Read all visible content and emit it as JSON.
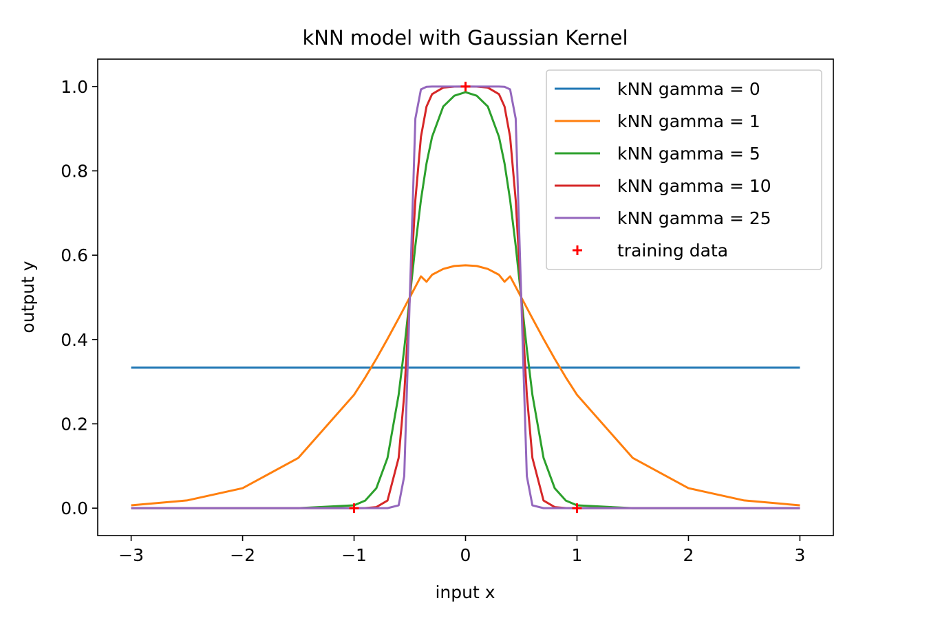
{
  "chart_data": {
    "type": "line",
    "title": "kNN model with Gaussian Kernel",
    "xlabel": "input x",
    "ylabel": "output y",
    "xlim": [
      -3.3,
      3.3
    ],
    "ylim": [
      -0.065,
      1.065
    ],
    "grid": false,
    "legend_position": "top-right",
    "xticks": [
      {
        "value": -3,
        "label": "−3"
      },
      {
        "value": -2,
        "label": "−2"
      },
      {
        "value": -1,
        "label": "−1"
      },
      {
        "value": 0,
        "label": "0"
      },
      {
        "value": 1,
        "label": "1"
      },
      {
        "value": 2,
        "label": "2"
      },
      {
        "value": 3,
        "label": "3"
      }
    ],
    "yticks": [
      {
        "value": 0.0,
        "label": "0.0"
      },
      {
        "value": 0.2,
        "label": "0.2"
      },
      {
        "value": 0.4,
        "label": "0.4"
      },
      {
        "value": 0.6,
        "label": "0.6"
      },
      {
        "value": 0.8,
        "label": "0.8"
      },
      {
        "value": 1.0,
        "label": "1.0"
      }
    ],
    "x": [
      -3.0,
      -2.5,
      -2.0,
      -1.5,
      -1.0,
      -0.9,
      -0.8,
      -0.7,
      -0.6,
      -0.55,
      -0.5,
      -0.45,
      -0.4,
      -0.35,
      -0.3,
      -0.2,
      -0.1,
      0.0,
      0.1,
      0.2,
      0.3,
      0.35,
      0.4,
      0.45,
      0.5,
      0.55,
      0.6,
      0.7,
      0.8,
      0.9,
      1.0,
      1.5,
      2.0,
      2.5,
      3.0
    ],
    "series": [
      {
        "name": "kNN gamma = 0",
        "color": "#1f77b4",
        "values": [
          0.3333,
          0.3333,
          0.3333,
          0.3333,
          0.3333,
          0.3333,
          0.3333,
          0.3333,
          0.3333,
          0.3333,
          0.3333,
          0.3333,
          0.3333,
          0.3333,
          0.3333,
          0.3333,
          0.3333,
          0.3333,
          0.3333,
          0.3333,
          0.3333,
          0.3333,
          0.3333,
          0.3333,
          0.3333,
          0.3333,
          0.3333,
          0.3333,
          0.3333,
          0.3333,
          0.3333,
          0.3333,
          0.3333,
          0.3333,
          0.3333
        ]
      },
      {
        "name": "kNN gamma = 1",
        "color": "#ff7f0e",
        "values": [
          0.0067,
          0.0183,
          0.0474,
          0.1192,
          0.2689,
          0.31,
          0.3543,
          0.4013,
          0.4502,
          0.475,
          0.5,
          0.525,
          0.5498,
          0.537,
          0.5536,
          0.5673,
          0.5744,
          0.5761,
          0.5744,
          0.5673,
          0.5536,
          0.537,
          0.5498,
          0.525,
          0.5,
          0.475,
          0.4502,
          0.4013,
          0.3543,
          0.31,
          0.2689,
          0.1192,
          0.0474,
          0.0183,
          0.0067
        ]
      },
      {
        "name": "kNN gamma = 5",
        "color": "#2ca02c",
        "values": [
          0.0,
          0.0,
          0.0,
          0.0,
          0.0067,
          0.018,
          0.0474,
          0.1192,
          0.2689,
          0.3775,
          0.5,
          0.6225,
          0.7311,
          0.8176,
          0.8808,
          0.9526,
          0.9782,
          0.9866,
          0.9782,
          0.9526,
          0.8808,
          0.8176,
          0.7311,
          0.6225,
          0.5,
          0.3775,
          0.2689,
          0.1192,
          0.0474,
          0.018,
          0.0067,
          0.0,
          0.0,
          0.0,
          0.0
        ]
      },
      {
        "name": "kNN gamma = 10",
        "color": "#d62728",
        "values": [
          0.0,
          0.0,
          0.0,
          0.0,
          0.0,
          0.0003,
          0.0025,
          0.018,
          0.1192,
          0.2689,
          0.5,
          0.7311,
          0.8808,
          0.9526,
          0.982,
          0.9975,
          0.9997,
          0.9999,
          0.9997,
          0.9975,
          0.982,
          0.9526,
          0.8808,
          0.7311,
          0.5,
          0.2689,
          0.1192,
          0.018,
          0.0025,
          0.0003,
          0.0,
          0.0,
          0.0,
          0.0,
          0.0
        ]
      },
      {
        "name": "kNN gamma = 25",
        "color": "#9467bd",
        "values": [
          0.0,
          0.0,
          0.0,
          0.0,
          0.0,
          0.0,
          0.0,
          0.0,
          0.0067,
          0.0759,
          0.5,
          0.9241,
          0.9933,
          0.9994,
          1.0,
          1.0,
          1.0,
          1.0,
          1.0,
          1.0,
          1.0,
          0.9994,
          0.9933,
          0.9241,
          0.5,
          0.0759,
          0.0067,
          0.0,
          0.0,
          0.0,
          0.0,
          0.0,
          0.0,
          0.0,
          0.0
        ]
      }
    ],
    "training_data": {
      "name": "training data",
      "color": "#ff0000",
      "marker": "+",
      "points": [
        {
          "x": -1,
          "y": 0
        },
        {
          "x": 0,
          "y": 1
        },
        {
          "x": 1,
          "y": 0
        }
      ]
    }
  }
}
